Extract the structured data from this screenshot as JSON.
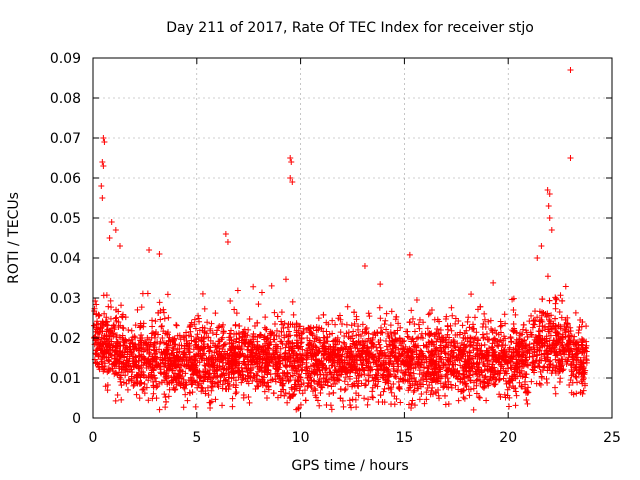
{
  "chart_data": {
    "type": "scatter",
    "title": "Day 211 of 2017, Rate Of TEC Index for receiver stjo",
    "xlabel": "GPS time / hours",
    "ylabel": "ROTI / TECUs",
    "xlim": [
      0,
      25
    ],
    "ylim": [
      0,
      0.09
    ],
    "xticks": [
      0,
      5,
      10,
      15,
      20,
      25
    ],
    "xtick_labels": [
      "0",
      "5",
      "10",
      "15",
      "20",
      "25"
    ],
    "yticks": [
      0,
      0.01,
      0.02,
      0.03,
      0.04,
      0.05,
      0.06,
      0.07,
      0.08,
      0.09
    ],
    "ytick_labels": [
      "0",
      "0.01",
      "0.02",
      "0.03",
      "0.04",
      "0.05",
      "0.06",
      "0.07",
      "0.08",
      "0.09"
    ],
    "grid": true,
    "marker": "plus",
    "color": "#ff0000",
    "series": [
      {
        "name": "ROTI",
        "note": "dense band approx 0.005-0.025 across 0-23.8 h; notable outliers listed explicitly",
        "outliers": [
          {
            "x": 0.5,
            "y": 0.07
          },
          {
            "x": 0.55,
            "y": 0.069
          },
          {
            "x": 0.45,
            "y": 0.064
          },
          {
            "x": 0.5,
            "y": 0.063
          },
          {
            "x": 0.4,
            "y": 0.058
          },
          {
            "x": 0.45,
            "y": 0.055
          },
          {
            "x": 0.9,
            "y": 0.049
          },
          {
            "x": 1.1,
            "y": 0.047
          },
          {
            "x": 0.8,
            "y": 0.045
          },
          {
            "x": 1.3,
            "y": 0.043
          },
          {
            "x": 2.7,
            "y": 0.042
          },
          {
            "x": 3.2,
            "y": 0.041
          },
          {
            "x": 6.4,
            "y": 0.046
          },
          {
            "x": 6.5,
            "y": 0.044
          },
          {
            "x": 9.5,
            "y": 0.065
          },
          {
            "x": 9.55,
            "y": 0.064
          },
          {
            "x": 9.5,
            "y": 0.06
          },
          {
            "x": 9.6,
            "y": 0.059
          },
          {
            "x": 13.1,
            "y": 0.038
          },
          {
            "x": 21.9,
            "y": 0.057
          },
          {
            "x": 22.0,
            "y": 0.056
          },
          {
            "x": 21.95,
            "y": 0.053
          },
          {
            "x": 22.0,
            "y": 0.05
          },
          {
            "x": 22.1,
            "y": 0.047
          },
          {
            "x": 21.6,
            "y": 0.043
          },
          {
            "x": 21.4,
            "y": 0.04
          },
          {
            "x": 23.0,
            "y": 0.087
          },
          {
            "x": 23.0,
            "y": 0.065
          }
        ],
        "band": {
          "x_start": 0.05,
          "x_end": 23.8,
          "y_min": 0.002,
          "y_median": 0.014,
          "y_max_typical": 0.03
        }
      }
    ]
  }
}
